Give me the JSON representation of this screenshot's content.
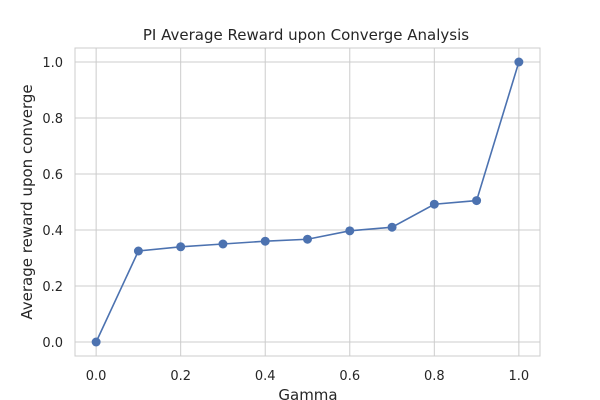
{
  "chart_data": {
    "type": "line",
    "title": "PI Average Reward upon Converge Analysis",
    "xlabel": "Gamma",
    "ylabel": "Average reward upon converge",
    "xlim": [
      -0.05,
      1.05
    ],
    "ylim": [
      -0.05,
      1.05
    ],
    "xticks": [
      0.0,
      0.2,
      0.4,
      0.6,
      0.8,
      1.0
    ],
    "xtick_labels": [
      "0.0",
      "0.2",
      "0.4",
      "0.6",
      "0.8",
      "1.0"
    ],
    "yticks": [
      0.0,
      0.2,
      0.4,
      0.6,
      0.8,
      1.0
    ],
    "ytick_labels": [
      "0.0",
      "0.2",
      "0.4",
      "0.6",
      "0.8",
      "1.0"
    ],
    "grid": true,
    "legend": null,
    "series": [
      {
        "color": "#4c72b0",
        "marker": "circle",
        "x": [
          0.0,
          0.1,
          0.2,
          0.3,
          0.4,
          0.5,
          0.6,
          0.7,
          0.8,
          0.9,
          1.0
        ],
        "y": [
          0.0,
          0.325,
          0.34,
          0.35,
          0.36,
          0.367,
          0.397,
          0.41,
          0.492,
          0.505,
          1.0
        ]
      }
    ],
    "colors": {
      "grid": "#cccccc",
      "spine": "#cccccc",
      "text": "#262626"
    }
  }
}
